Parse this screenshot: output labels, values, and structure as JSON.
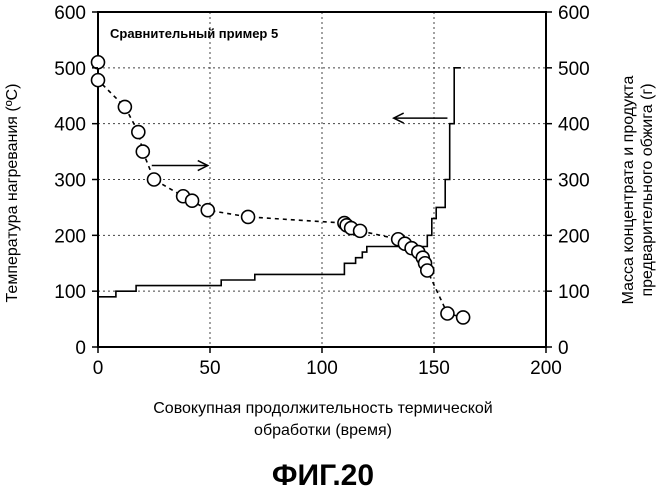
{
  "chart_data": {
    "type": "line",
    "annotation": "Сравнительный пример 5",
    "xlabel_lines": [
      "Совокупная продолжительность термической",
      "обработки (время)"
    ],
    "ylabel_left": "Температура нагревания (ºC)",
    "ylabel_right_lines": [
      "Масса концентрата и продукта",
      "предварительного обжига (г)"
    ],
    "figure_caption": "ФИГ.20",
    "xlim": [
      0,
      200
    ],
    "ylim_left": [
      0,
      600
    ],
    "ylim_right": [
      0,
      600
    ],
    "x_ticks": [
      "0",
      "50",
      "100",
      "150",
      "200"
    ],
    "y_ticks_left": [
      "0",
      "100",
      "200",
      "300",
      "400",
      "500",
      "600"
    ],
    "y_ticks_right": [
      "0",
      "100",
      "200",
      "300",
      "400",
      "500",
      "600"
    ],
    "gridlines_x": [
      50,
      100,
      150
    ],
    "gridlines_y": [
      100,
      200,
      300,
      400,
      500
    ],
    "grid": true,
    "series": [
      {
        "axis": "left",
        "style": "step-solid",
        "points": [
          [
            0,
            90
          ],
          [
            8,
            90
          ],
          [
            8,
            100
          ],
          [
            17,
            100
          ],
          [
            17,
            110
          ],
          [
            55,
            110
          ],
          [
            55,
            120
          ],
          [
            70,
            120
          ],
          [
            70,
            130
          ],
          [
            110,
            130
          ],
          [
            110,
            150
          ],
          [
            115,
            150
          ],
          [
            115,
            160
          ],
          [
            118,
            160
          ],
          [
            118,
            170
          ],
          [
            120,
            170
          ],
          [
            120,
            180
          ],
          [
            147,
            180
          ],
          [
            147,
            200
          ],
          [
            149,
            200
          ],
          [
            149,
            230
          ],
          [
            151,
            230
          ],
          [
            151,
            250
          ],
          [
            155,
            250
          ],
          [
            155,
            300
          ],
          [
            157,
            300
          ],
          [
            157,
            400
          ],
          [
            159,
            400
          ],
          [
            159,
            500
          ],
          [
            162,
            500
          ]
        ]
      },
      {
        "axis": "right",
        "style": "dashed-circles",
        "points": [
          [
            0,
            510
          ],
          [
            0,
            478
          ],
          [
            12,
            430
          ],
          [
            18,
            385
          ],
          [
            20,
            350
          ],
          [
            25,
            300
          ],
          [
            38,
            270
          ],
          [
            42,
            262
          ],
          [
            49,
            245
          ],
          [
            67,
            233
          ],
          [
            110,
            222
          ],
          [
            111,
            218
          ],
          [
            113,
            213
          ],
          [
            117,
            208
          ],
          [
            134,
            193
          ],
          [
            137,
            185
          ],
          [
            140,
            177
          ],
          [
            143,
            170
          ],
          [
            145,
            160
          ],
          [
            146,
            150
          ],
          [
            147,
            137
          ],
          [
            156,
            60
          ],
          [
            163,
            53
          ]
        ]
      }
    ],
    "arrows": [
      {
        "direction": "right",
        "indicates_axis": "right"
      },
      {
        "direction": "left",
        "indicates_axis": "left"
      }
    ]
  }
}
